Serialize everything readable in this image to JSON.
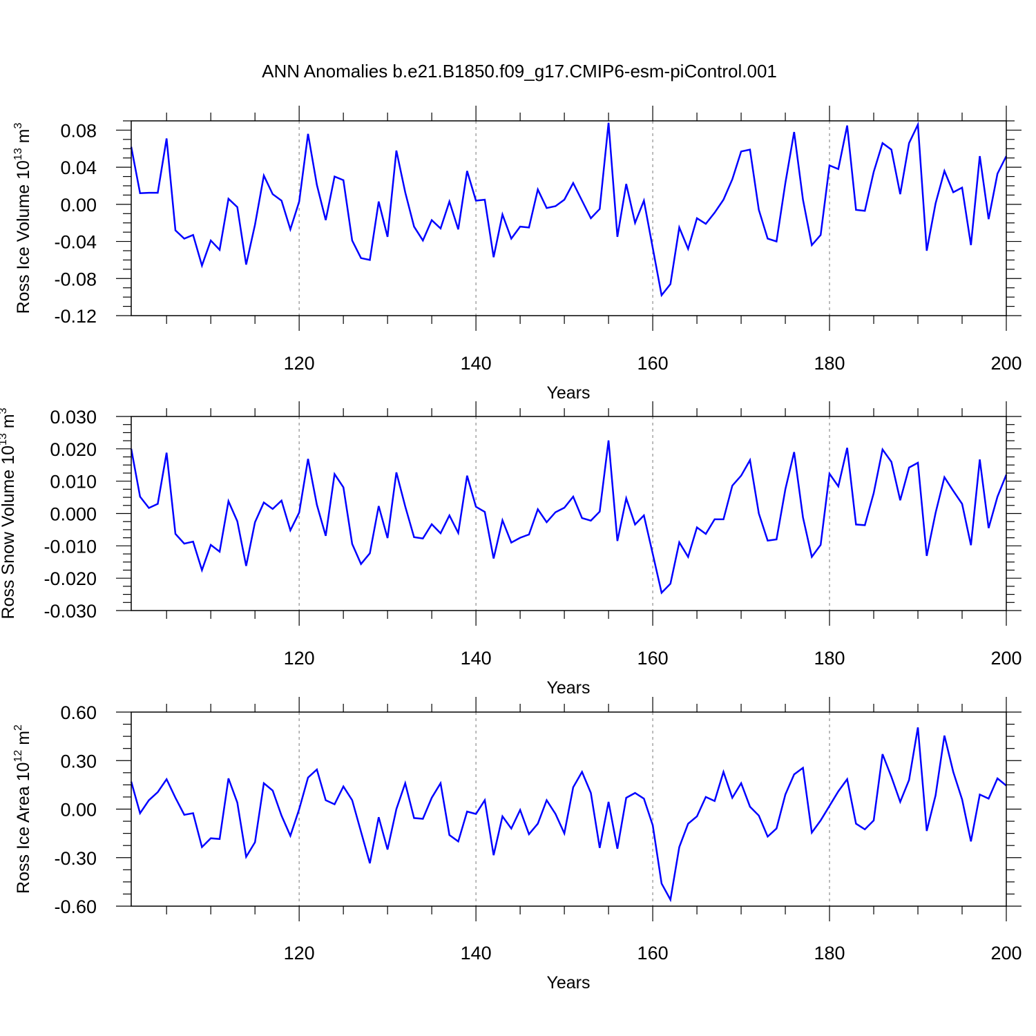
{
  "figure_title": "ANN Anomalies b.e21.B1850.f09_g17.CMIP6-esm-piControl.001",
  "series_color": "#0000ff",
  "chart_data": [
    {
      "type": "line",
      "ylabel_main": "Ross Ice Volume 10",
      "ylabel_exp": "13",
      "ylabel_unit": " m",
      "ylabel_unit_exp": "3",
      "xlabel": "Years",
      "xlim": [
        101,
        200
      ],
      "ylim": [
        -0.12,
        0.09
      ],
      "yticks": [
        0.08,
        0.04,
        0.0,
        -0.04,
        -0.08,
        -0.12
      ],
      "ytick_labels": [
        "0.08",
        "0.04",
        "0.00",
        "-0.04",
        "-0.08",
        "-0.12"
      ],
      "xticks": [
        120,
        140,
        160,
        180,
        200
      ],
      "xtick_labels": [
        "120",
        "140",
        "160",
        "180",
        "200"
      ],
      "x_start": 101,
      "values": [
        0.062,
        0.012,
        0.0125,
        0.0125,
        0.071,
        -0.028,
        -0.037,
        -0.033,
        -0.066,
        -0.039,
        -0.049,
        0.006,
        -0.003,
        -0.065,
        -0.022,
        0.031,
        0.011,
        0.004,
        -0.027,
        0.003,
        0.076,
        0.021,
        -0.017,
        0.03,
        0.026,
        -0.039,
        -0.058,
        -0.06,
        0.003,
        -0.035,
        0.058,
        0.013,
        -0.024,
        -0.039,
        -0.017,
        -0.026,
        0.003,
        -0.027,
        0.036,
        0.004,
        0.005,
        -0.057,
        -0.011,
        -0.037,
        -0.024,
        -0.025,
        0.016,
        -0.004,
        -0.002,
        0.005,
        0.023,
        0.004,
        -0.015,
        -0.005,
        0.088,
        -0.035,
        0.022,
        -0.02,
        0.004,
        -0.047,
        -0.098,
        -0.086,
        -0.025,
        -0.048,
        -0.015,
        -0.021,
        -0.009,
        0.005,
        0.027,
        0.057,
        0.059,
        -0.006,
        -0.037,
        -0.04,
        0.023,
        0.078,
        0.005,
        -0.044,
        -0.033,
        0.042,
        0.038,
        0.085,
        -0.006,
        -0.007,
        0.035,
        0.066,
        0.059,
        0.011,
        0.066,
        0.086,
        -0.05,
        0.001,
        0.036,
        0.013,
        0.018,
        -0.044,
        0.052,
        -0.016,
        0.033,
        0.052
      ]
    },
    {
      "type": "line",
      "ylabel_main": "Ross Snow Volume 10",
      "ylabel_exp": "13",
      "ylabel_unit": " m",
      "ylabel_unit_exp": "3",
      "xlabel": "Years",
      "xlim": [
        101,
        200
      ],
      "ylim": [
        -0.03,
        0.03
      ],
      "yticks": [
        0.03,
        0.02,
        0.01,
        0.0,
        -0.01,
        -0.02,
        -0.03
      ],
      "ytick_labels": [
        "0.030",
        "0.020",
        "0.010",
        "0.000",
        "-0.010",
        "-0.020",
        "-0.030"
      ],
      "xticks": [
        120,
        140,
        160,
        180,
        200
      ],
      "xtick_labels": [
        "120",
        "140",
        "160",
        "180",
        "200"
      ],
      "x_start": 101,
      "values": [
        0.02,
        0.0052,
        0.0017,
        0.003,
        0.0188,
        -0.0063,
        -0.0093,
        -0.0087,
        -0.0175,
        -0.0097,
        -0.0118,
        0.0038,
        -0.0024,
        -0.0162,
        -0.0027,
        0.0034,
        0.0014,
        0.004,
        -0.0052,
        0.0003,
        0.0169,
        0.0027,
        -0.0069,
        0.0122,
        0.0081,
        -0.0094,
        -0.0156,
        -0.0123,
        0.0023,
        -0.0076,
        0.0127,
        0.0022,
        -0.0073,
        -0.0077,
        -0.0033,
        -0.0061,
        -0.0006,
        -0.006,
        0.0117,
        0.0021,
        0.0005,
        -0.0139,
        -0.0021,
        -0.009,
        -0.0075,
        -0.0065,
        0.0013,
        -0.0027,
        0.0004,
        0.0018,
        0.0052,
        -0.0014,
        -0.0022,
        0.0006,
        0.0226,
        -0.0085,
        0.0047,
        -0.0034,
        -0.0006,
        -0.0125,
        -0.0245,
        -0.0217,
        -0.0089,
        -0.0134,
        -0.0043,
        -0.0063,
        -0.0018,
        -0.0018,
        0.0086,
        0.0117,
        0.0165,
        0.0,
        -0.0084,
        -0.008,
        0.0075,
        0.019,
        -0.0012,
        -0.0134,
        -0.0097,
        0.0123,
        0.0084,
        0.0203,
        -0.0034,
        -0.0036,
        0.0063,
        0.0198,
        0.016,
        0.0041,
        0.0142,
        0.0157,
        -0.0131,
        0.0002,
        0.0112,
        0.007,
        0.003,
        -0.0098,
        0.0167,
        -0.0045,
        0.0052,
        0.012
      ]
    },
    {
      "type": "line",
      "ylabel_main": "Ross Ice Area 10",
      "ylabel_exp": "12",
      "ylabel_unit": " m",
      "ylabel_unit_exp": "2",
      "xlabel": "Years",
      "xlim": [
        101,
        200
      ],
      "ylim": [
        -0.6,
        0.6
      ],
      "yticks": [
        0.6,
        0.3,
        0.0,
        -0.3,
        -0.6
      ],
      "ytick_labels": [
        "0.60",
        "0.30",
        "0.00",
        "-0.30",
        "-0.60"
      ],
      "xticks": [
        120,
        140,
        160,
        180,
        200
      ],
      "xtick_labels": [
        "120",
        "140",
        "160",
        "180",
        "200"
      ],
      "x_start": 101,
      "values": [
        0.17,
        -0.025,
        0.055,
        0.105,
        0.185,
        0.07,
        -0.035,
        -0.025,
        -0.235,
        -0.18,
        -0.185,
        0.19,
        0.04,
        -0.295,
        -0.205,
        0.16,
        0.115,
        -0.04,
        -0.165,
        0.0,
        0.195,
        0.245,
        0.055,
        0.03,
        0.14,
        0.055,
        -0.14,
        -0.335,
        -0.05,
        -0.25,
        0.0,
        0.16,
        -0.055,
        -0.06,
        0.07,
        0.16,
        -0.16,
        -0.2,
        -0.015,
        -0.03,
        0.055,
        -0.285,
        -0.045,
        -0.12,
        -0.005,
        -0.155,
        -0.09,
        0.055,
        -0.03,
        -0.15,
        0.135,
        0.23,
        0.1,
        -0.24,
        0.045,
        -0.245,
        0.07,
        0.1,
        0.065,
        -0.1,
        -0.46,
        -0.56,
        -0.235,
        -0.09,
        -0.045,
        0.075,
        0.05,
        0.23,
        0.07,
        0.16,
        0.015,
        -0.04,
        -0.17,
        -0.12,
        0.09,
        0.215,
        0.255,
        -0.145,
        -0.07,
        0.02,
        0.11,
        0.185,
        -0.09,
        -0.125,
        -0.07,
        0.34,
        0.2,
        0.045,
        0.18,
        0.505,
        -0.135,
        0.085,
        0.455,
        0.23,
        0.06,
        -0.2,
        0.09,
        0.065,
        0.19,
        0.145
      ]
    }
  ]
}
